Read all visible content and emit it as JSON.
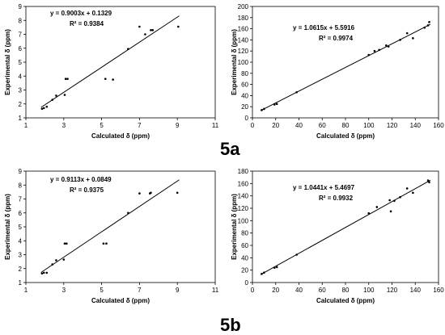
{
  "figure_labels": [
    "5a",
    "5b"
  ],
  "chart_data": [
    {
      "type": "scatter",
      "xlabel": "Calculated δ (ppm)",
      "ylabel": "Experimental δ (ppm)",
      "xlim": [
        1,
        11
      ],
      "ylim": [
        1,
        9
      ],
      "xticks": [
        1,
        3,
        5,
        7,
        9,
        11
      ],
      "yticks": [
        1,
        2,
        3,
        4,
        5,
        6,
        7,
        8,
        9
      ],
      "equation": "y = 0.9003x + 0.1329",
      "r2": "R² = 0.9384",
      "trendline": {
        "slope": 0.9003,
        "intercept": 0.1329,
        "x": [
          1.8,
          9.1
        ]
      },
      "points": [
        [
          1.85,
          1.65
        ],
        [
          1.95,
          1.7
        ],
        [
          2.1,
          1.8
        ],
        [
          2.4,
          2.3
        ],
        [
          2.6,
          2.6
        ],
        [
          3.05,
          2.65
        ],
        [
          3.1,
          3.8
        ],
        [
          3.2,
          3.8
        ],
        [
          5.2,
          3.8
        ],
        [
          5.6,
          3.75
        ],
        [
          6.4,
          5.95
        ],
        [
          7.0,
          7.55
        ],
        [
          7.3,
          7.0
        ],
        [
          7.6,
          7.3
        ],
        [
          7.7,
          7.3
        ],
        [
          9.05,
          7.55
        ]
      ],
      "grid": false
    },
    {
      "type": "scatter",
      "xlabel": "Calculated δ (ppm)",
      "ylabel": "Experimental δ (ppm)",
      "xlim": [
        0,
        160
      ],
      "ylim": [
        0,
        200
      ],
      "xticks": [
        0,
        20,
        40,
        60,
        80,
        100,
        120,
        140,
        160
      ],
      "yticks": [
        0,
        20,
        40,
        60,
        80,
        100,
        120,
        140,
        160,
        180,
        200
      ],
      "equation": "y = 1.0615x + 5.5916",
      "r2": "R² = 0.9974",
      "trendline": {
        "slope": 1.0615,
        "intercept": 5.5916,
        "x": [
          7,
          153
        ]
      },
      "points": [
        [
          8,
          14
        ],
        [
          10,
          16
        ],
        [
          19,
          24
        ],
        [
          21,
          25
        ],
        [
          38,
          46
        ],
        [
          100,
          113
        ],
        [
          105,
          120
        ],
        [
          109,
          122
        ],
        [
          115,
          130
        ],
        [
          117,
          128
        ],
        [
          127,
          140
        ],
        [
          133,
          152
        ],
        [
          138,
          143
        ],
        [
          148,
          162
        ],
        [
          151,
          166
        ],
        [
          152,
          172
        ]
      ],
      "grid": false
    },
    {
      "type": "scatter",
      "xlabel": "Calculated δ (ppm)",
      "ylabel": "Experimental δ (ppm)",
      "xlim": [
        1,
        11
      ],
      "ylim": [
        1,
        9
      ],
      "xticks": [
        1,
        3,
        5,
        7,
        9,
        11
      ],
      "yticks": [
        1,
        2,
        3,
        4,
        5,
        6,
        7,
        8,
        9
      ],
      "equation": "y = 0.9113x + 0.0849",
      "r2": "R² = 0.9375",
      "trendline": {
        "slope": 0.9113,
        "intercept": 0.0849,
        "x": [
          1.8,
          9.1
        ]
      },
      "points": [
        [
          1.85,
          1.65
        ],
        [
          1.95,
          1.7
        ],
        [
          2.1,
          1.7
        ],
        [
          2.4,
          2.3
        ],
        [
          2.6,
          2.6
        ],
        [
          3.0,
          2.65
        ],
        [
          3.05,
          3.8
        ],
        [
          3.15,
          3.8
        ],
        [
          5.1,
          3.8
        ],
        [
          5.25,
          3.8
        ],
        [
          6.4,
          6.0
        ],
        [
          7.0,
          7.4
        ],
        [
          7.55,
          7.4
        ],
        [
          7.6,
          7.45
        ],
        [
          9.0,
          7.45
        ]
      ],
      "grid": false
    },
    {
      "type": "scatter",
      "xlabel": "Calculated δ (ppm)",
      "ylabel": "Experimental δ (ppm)",
      "xlim": [
        0,
        160
      ],
      "ylim": [
        0,
        180
      ],
      "xticks": [
        0,
        20,
        40,
        60,
        80,
        100,
        120,
        140,
        160
      ],
      "yticks": [
        0,
        20,
        40,
        60,
        80,
        100,
        120,
        140,
        160,
        180
      ],
      "equation": "y = 1.0441x + 5.4697",
      "r2": "R² = 0.9932",
      "trendline": {
        "slope": 1.0441,
        "intercept": 5.4697,
        "x": [
          7,
          153
        ]
      },
      "points": [
        [
          8,
          14
        ],
        [
          10,
          16
        ],
        [
          19,
          24
        ],
        [
          21,
          25
        ],
        [
          38,
          45
        ],
        [
          100,
          112
        ],
        [
          107,
          122
        ],
        [
          118,
          133
        ],
        [
          119,
          115
        ],
        [
          122,
          132
        ],
        [
          127,
          138
        ],
        [
          133,
          152
        ],
        [
          138,
          145
        ],
        [
          151,
          165
        ],
        [
          152,
          162
        ]
      ],
      "grid": false
    }
  ]
}
